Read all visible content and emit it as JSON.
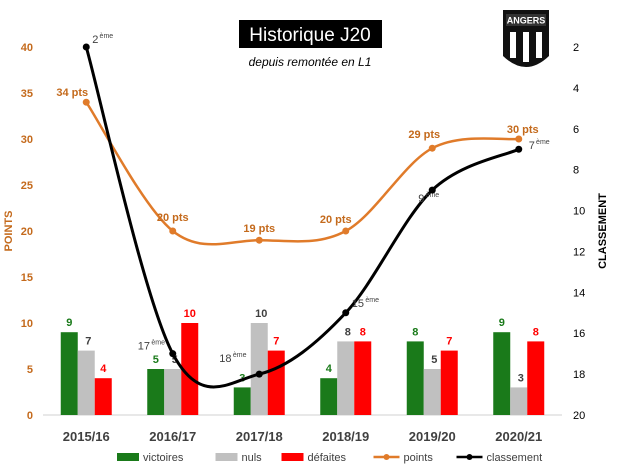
{
  "chart_data": {
    "type": "bar",
    "title": "Historique J20",
    "subtitle": "depuis remontée en L1",
    "logo_text": "ANGERS",
    "ylabel_left": "POINTS",
    "ylabel_right": "CLASSEMENT",
    "ylim_left": [
      0,
      40
    ],
    "yticks_left": [
      "0",
      "5",
      "10",
      "15",
      "20",
      "25",
      "30",
      "35",
      "40"
    ],
    "ylim_right": [
      2,
      20
    ],
    "yticks_right": [
      "2",
      "4",
      "6",
      "8",
      "10",
      "12",
      "14",
      "16",
      "18",
      "20"
    ],
    "categories": [
      "2015/16",
      "2016/17",
      "2017/18",
      "2018/19",
      "2019/20",
      "2020/21"
    ],
    "series": [
      {
        "name": "victoires",
        "color": "#1a7a1a",
        "label_color": "#1a7a1a",
        "values": [
          9,
          5,
          3,
          4,
          8,
          9
        ]
      },
      {
        "name": "nuls",
        "color": "#c0c0c0",
        "label_color": "#404040",
        "values": [
          7,
          5,
          10,
          8,
          5,
          3
        ]
      },
      {
        "name": "défaites",
        "color": "#ff0000",
        "label_color": "#ff0000",
        "values": [
          4,
          10,
          7,
          8,
          7,
          8
        ]
      }
    ],
    "points": {
      "name": "points",
      "color": "#e07b2a",
      "values": [
        34,
        20,
        19,
        20,
        29,
        30
      ],
      "labels": [
        "34 pts",
        "20 pts",
        "19 pts",
        "20 pts",
        "29 pts",
        "30 pts"
      ]
    },
    "classement": {
      "name": "classement",
      "color": "#000000",
      "values": [
        2,
        17,
        18,
        15,
        9,
        7
      ],
      "labels": [
        "2",
        "17",
        "18",
        "15",
        "9",
        "7"
      ],
      "suffix": "ème"
    },
    "grid": false,
    "legend_position": "bottom"
  }
}
